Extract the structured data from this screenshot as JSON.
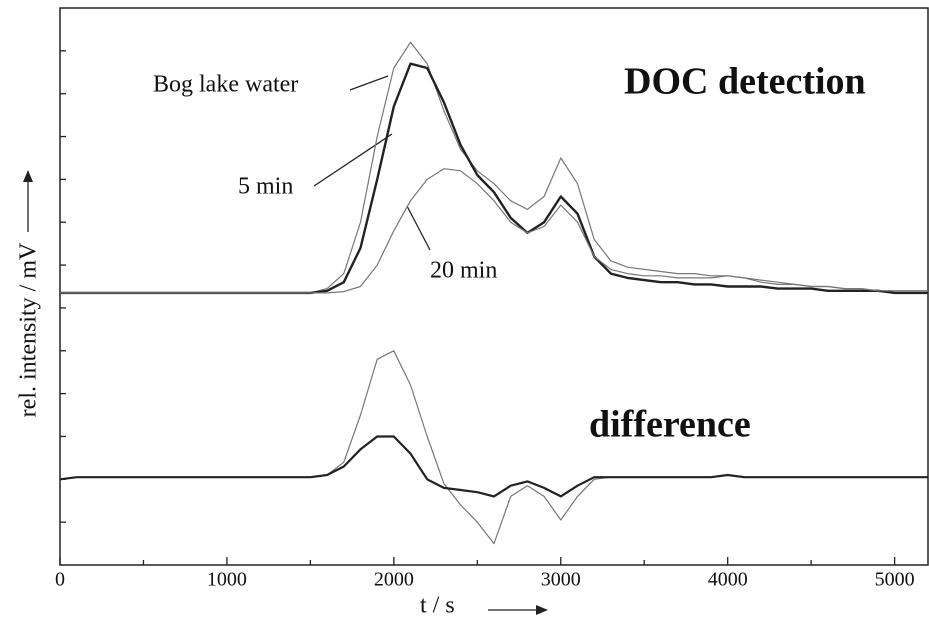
{
  "chart_data": {
    "type": "line",
    "xlabel": "t / s",
    "ylabel": "rel. intensity / mV",
    "annotations": [
      "Bog lake water",
      "5 min",
      "20 min",
      "DOC detection",
      "difference"
    ],
    "xlim": [
      0,
      5200
    ],
    "ylim": [
      0,
      13
    ],
    "xticks": [
      0,
      1000,
      2000,
      3000,
      4000,
      5000
    ],
    "xminorticks": [
      500,
      1500,
      2500,
      3500,
      4500
    ],
    "yticks": [
      1,
      2,
      3,
      4,
      5,
      6,
      7,
      8,
      9,
      10,
      11,
      12
    ],
    "x": [
      0,
      100,
      200,
      300,
      400,
      500,
      600,
      700,
      800,
      900,
      1000,
      1100,
      1200,
      1300,
      1400,
      1500,
      1600,
      1700,
      1800,
      1900,
      2000,
      2100,
      2200,
      2300,
      2400,
      2500,
      2600,
      2700,
      2800,
      2900,
      3000,
      3100,
      3200,
      3300,
      3400,
      3500,
      3600,
      3700,
      3800,
      3900,
      4000,
      4100,
      4200,
      4300,
      4400,
      4500,
      4600,
      4700,
      4800,
      4900,
      5000,
      5100,
      5200
    ],
    "series": [
      {
        "color": "#777777",
        "width": 1.2,
        "values": [
          6.35,
          6.35,
          6.35,
          6.35,
          6.35,
          6.35,
          6.35,
          6.35,
          6.35,
          6.35,
          6.35,
          6.35,
          6.35,
          6.35,
          6.35,
          6.35,
          6.45,
          6.8,
          8.0,
          10.0,
          11.6,
          12.2,
          11.7,
          10.6,
          9.7,
          9.2,
          8.9,
          8.5,
          8.3,
          8.6,
          9.5,
          8.9,
          7.6,
          7.1,
          6.95,
          6.9,
          6.85,
          6.8,
          6.8,
          6.75,
          6.75,
          6.7,
          6.65,
          6.6,
          6.55,
          6.5,
          6.5,
          6.45,
          6.45,
          6.4,
          6.4,
          6.4,
          6.4
        ]
      },
      {
        "color": "#222222",
        "width": 2.4,
        "values": [
          6.35,
          6.35,
          6.35,
          6.35,
          6.35,
          6.35,
          6.35,
          6.35,
          6.35,
          6.35,
          6.35,
          6.35,
          6.35,
          6.35,
          6.35,
          6.35,
          6.4,
          6.6,
          7.4,
          9.0,
          10.7,
          11.7,
          11.6,
          10.8,
          9.8,
          9.1,
          8.7,
          8.1,
          7.75,
          8.0,
          8.6,
          8.2,
          7.2,
          6.8,
          6.7,
          6.65,
          6.6,
          6.6,
          6.55,
          6.55,
          6.5,
          6.5,
          6.5,
          6.45,
          6.45,
          6.45,
          6.4,
          6.4,
          6.4,
          6.4,
          6.35,
          6.35,
          6.35
        ]
      },
      {
        "color": "#777777",
        "width": 1.2,
        "values": [
          6.35,
          6.35,
          6.35,
          6.35,
          6.35,
          6.35,
          6.35,
          6.35,
          6.35,
          6.35,
          6.35,
          6.35,
          6.35,
          6.35,
          6.35,
          6.35,
          6.35,
          6.38,
          6.5,
          7.0,
          7.8,
          8.5,
          9.0,
          9.25,
          9.2,
          8.9,
          8.5,
          8.0,
          7.75,
          7.9,
          8.4,
          8.0,
          7.2,
          6.9,
          6.8,
          6.75,
          6.75,
          6.7,
          6.7,
          6.7,
          6.75,
          6.7,
          6.6,
          6.55,
          6.55,
          6.5,
          6.5,
          6.45,
          6.45,
          6.4,
          6.4,
          6.4,
          6.4
        ]
      },
      {
        "color": "#777777",
        "width": 1.2,
        "values": [
          2.0,
          2.05,
          2.05,
          2.05,
          2.05,
          2.05,
          2.05,
          2.05,
          2.05,
          2.05,
          2.05,
          2.05,
          2.05,
          2.05,
          2.05,
          2.05,
          2.1,
          2.4,
          3.5,
          4.8,
          5.0,
          4.2,
          3.0,
          1.9,
          1.4,
          1.0,
          0.5,
          1.6,
          1.85,
          1.6,
          1.05,
          1.6,
          2.0,
          2.05,
          2.05,
          2.05,
          2.05,
          2.05,
          2.05,
          2.05,
          2.1,
          2.05,
          2.05,
          2.05,
          2.05,
          2.05,
          2.05,
          2.05,
          2.05,
          2.05,
          2.05,
          2.05,
          2.05
        ]
      },
      {
        "color": "#222222",
        "width": 2.2,
        "values": [
          2.0,
          2.05,
          2.05,
          2.05,
          2.05,
          2.05,
          2.05,
          2.05,
          2.05,
          2.05,
          2.05,
          2.05,
          2.05,
          2.05,
          2.05,
          2.05,
          2.1,
          2.3,
          2.7,
          3.0,
          3.0,
          2.6,
          2.0,
          1.8,
          1.75,
          1.7,
          1.6,
          1.85,
          1.95,
          1.8,
          1.6,
          1.85,
          2.05,
          2.05,
          2.05,
          2.05,
          2.05,
          2.05,
          2.05,
          2.05,
          2.1,
          2.05,
          2.05,
          2.05,
          2.05,
          2.05,
          2.05,
          2.05,
          2.05,
          2.05,
          2.05,
          2.05,
          2.05
        ]
      }
    ]
  }
}
